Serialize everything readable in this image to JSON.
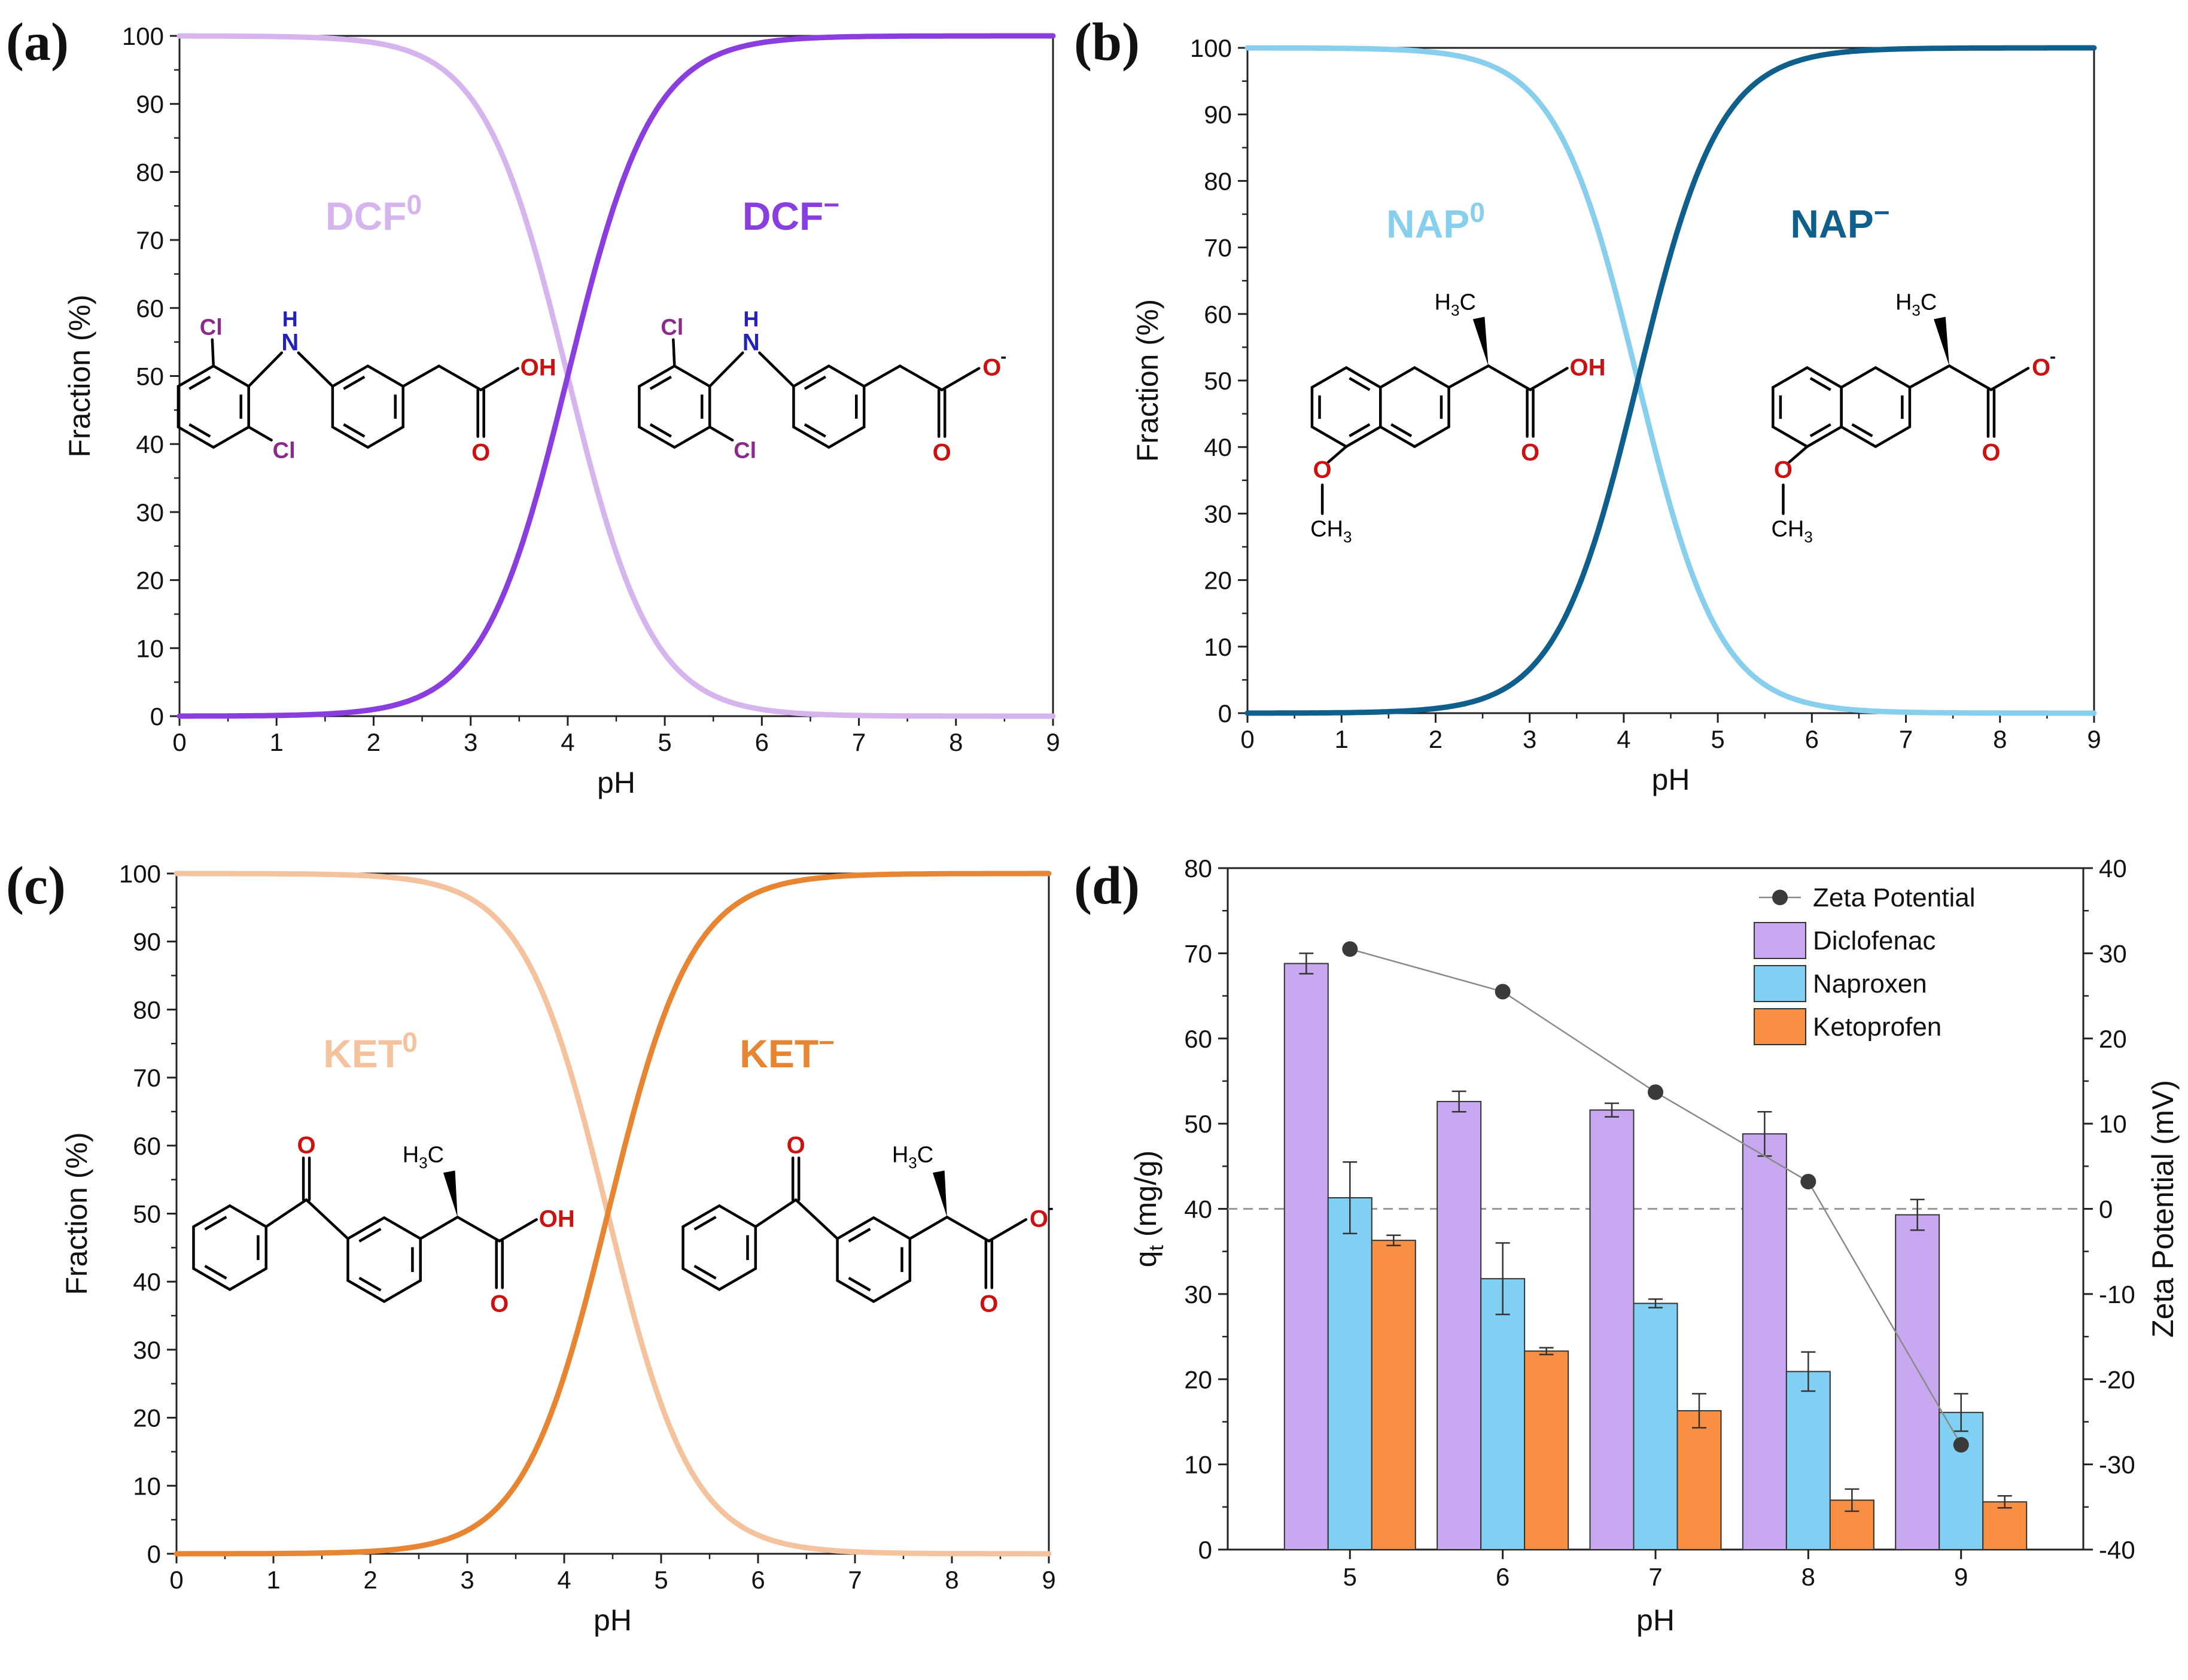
{
  "colors": {
    "dcf_neutral": "#d6b4ee",
    "dcf_anion": "#8a3ee0",
    "nap_neutral": "#88cfee",
    "nap_anion": "#0f5f8c",
    "ket_neutral": "#f4c29c",
    "ket_anion": "#e88532",
    "bar_diclofenac": "#c9a8f2",
    "bar_naproxen": "#7fd0f2",
    "bar_ketoprofen": "#f98f42",
    "zeta": "#3a3a3a",
    "atom_cl": "#8a2a8a",
    "atom_n": "#2222bb",
    "atom_o": "#cc1111",
    "axis": "#222222"
  },
  "chart_data": [
    {
      "id": "a",
      "type": "line",
      "panel_label": "(a)",
      "xlabel": "pH",
      "ylabel": "Fraction (%)",
      "xlim": [
        0,
        9
      ],
      "ylim": [
        0,
        100
      ],
      "xticks": [
        "0",
        "1",
        "2",
        "3",
        "4",
        "5",
        "6",
        "7",
        "8",
        "9"
      ],
      "yticks": [
        "0",
        "10",
        "20",
        "30",
        "40",
        "50",
        "60",
        "70",
        "80",
        "90",
        "100"
      ],
      "pKa": 4.0,
      "series": [
        {
          "name": "DCF neutral",
          "label_main": "DCF",
          "label_sup": "0",
          "form": "neutral",
          "color_key": "dcf_neutral"
        },
        {
          "name": "DCF anion",
          "label_main": "DCF",
          "label_sup": "−",
          "form": "anion",
          "color_key": "dcf_anion"
        }
      ],
      "structures": [
        {
          "kind": "diclofenac",
          "form": "neutral",
          "atoms": {
            "cl_top": "Cl",
            "cl_bottom": "Cl",
            "h": "H",
            "n": "N",
            "acid_group": "OH",
            "carbonyl_o": "O"
          }
        },
        {
          "kind": "diclofenac",
          "form": "anion",
          "atoms": {
            "cl_top": "Cl",
            "cl_bottom": "Cl",
            "h": "H",
            "n": "N",
            "anion_o": "O",
            "anion_charge": "-",
            "carbonyl_o": "O"
          }
        }
      ]
    },
    {
      "id": "b",
      "type": "line",
      "panel_label": "(b)",
      "xlabel": "pH",
      "ylabel": "Fraction (%)",
      "xlim": [
        0,
        9
      ],
      "ylim": [
        0,
        100
      ],
      "xticks": [
        "0",
        "1",
        "2",
        "3",
        "4",
        "5",
        "6",
        "7",
        "8",
        "9"
      ],
      "yticks": [
        "0",
        "10",
        "20",
        "30",
        "40",
        "50",
        "60",
        "70",
        "80",
        "90",
        "100"
      ],
      "pKa": 4.15,
      "series": [
        {
          "name": "NAP neutral",
          "label_main": "NAP",
          "label_sup": "0",
          "form": "neutral",
          "color_key": "nap_neutral"
        },
        {
          "name": "NAP anion",
          "label_main": "NAP",
          "label_sup": "−",
          "form": "anion",
          "color_key": "nap_anion"
        }
      ],
      "structures": [
        {
          "kind": "naproxen",
          "form": "neutral",
          "atoms": {
            "methyl_main": "H",
            "methyl_sub": "3",
            "methyl_tail": "C",
            "methoxy_o": "O",
            "methoxy_main": "CH",
            "methoxy_sub": "3",
            "acid_group": "OH",
            "carbonyl_o": "O"
          }
        },
        {
          "kind": "naproxen",
          "form": "anion",
          "atoms": {
            "methyl_main": "H",
            "methyl_sub": "3",
            "methyl_tail": "C",
            "methoxy_o": "O",
            "methoxy_main": "CH",
            "methoxy_sub": "3",
            "anion_o": "O",
            "anion_charge": "-",
            "carbonyl_o": "O"
          }
        }
      ]
    },
    {
      "id": "c",
      "type": "line",
      "panel_label": "(c)",
      "xlabel": "pH",
      "ylabel": "Fraction (%)",
      "xlim": [
        0,
        9
      ],
      "ylim": [
        0,
        100
      ],
      "xticks": [
        "0",
        "1",
        "2",
        "3",
        "4",
        "5",
        "6",
        "7",
        "8",
        "9"
      ],
      "yticks": [
        "0",
        "10",
        "20",
        "30",
        "40",
        "50",
        "60",
        "70",
        "80",
        "90",
        "100"
      ],
      "pKa": 4.45,
      "series": [
        {
          "name": "KET neutral",
          "label_main": "KET",
          "label_sup": "0",
          "form": "neutral",
          "color_key": "ket_neutral"
        },
        {
          "name": "KET anion",
          "label_main": "KET",
          "label_sup": "−",
          "form": "anion",
          "color_key": "ket_anion"
        }
      ],
      "structures": [
        {
          "kind": "ketoprofen",
          "form": "neutral",
          "atoms": {
            "keto_o": "O",
            "methyl_main": "H",
            "methyl_sub": "3",
            "methyl_tail": "C",
            "acid_group": "OH",
            "carbonyl_o": "O"
          }
        },
        {
          "kind": "ketoprofen",
          "form": "anion",
          "atoms": {
            "keto_o": "O",
            "methyl_main": "H",
            "methyl_sub": "3",
            "methyl_tail": "C",
            "anion_o": "O",
            "anion_charge": "-",
            "carbonyl_o": "O"
          }
        }
      ]
    },
    {
      "id": "d",
      "type": "bar",
      "panel_label": "(d)",
      "xlabel": "pH",
      "ylabel_main": "q",
      "ylabel_sub": "t",
      "ylabel_tail": " (mg/g)",
      "ylabel_right": "Zeta Potential (mV)",
      "categories": [
        "5",
        "6",
        "7",
        "8",
        "9"
      ],
      "ylim": [
        0,
        80
      ],
      "yticks": [
        "0",
        "10",
        "20",
        "30",
        "40",
        "50",
        "60",
        "70",
        "80"
      ],
      "ylim_right": [
        -40,
        40
      ],
      "yticks_right": [
        "-40",
        "-30",
        "-20",
        "-10",
        "0",
        "10",
        "20",
        "30",
        "40"
      ],
      "zero_reference_right": 0,
      "series": [
        {
          "name": "Diclofenac",
          "color_key": "bar_diclofenac",
          "values": [
            68.8,
            52.6,
            51.6,
            48.8,
            39.3
          ],
          "errors": [
            1.2,
            1.2,
            0.8,
            2.6,
            1.8
          ]
        },
        {
          "name": "Naproxen",
          "color_key": "bar_naproxen",
          "values": [
            41.3,
            31.8,
            28.9,
            20.9,
            16.1
          ],
          "errors": [
            4.2,
            4.2,
            0.5,
            2.3,
            2.2
          ]
        },
        {
          "name": "Ketoprofen",
          "color_key": "bar_ketoprofen",
          "values": [
            36.3,
            23.3,
            16.3,
            5.8,
            5.6
          ],
          "errors": [
            0.6,
            0.4,
            2.0,
            1.3,
            0.7
          ]
        }
      ],
      "line_series": {
        "name": "Zeta Potential",
        "color_key": "zeta",
        "axis": "right",
        "values": [
          30.5,
          25.5,
          13.7,
          3.2,
          -27.7
        ]
      }
    }
  ]
}
